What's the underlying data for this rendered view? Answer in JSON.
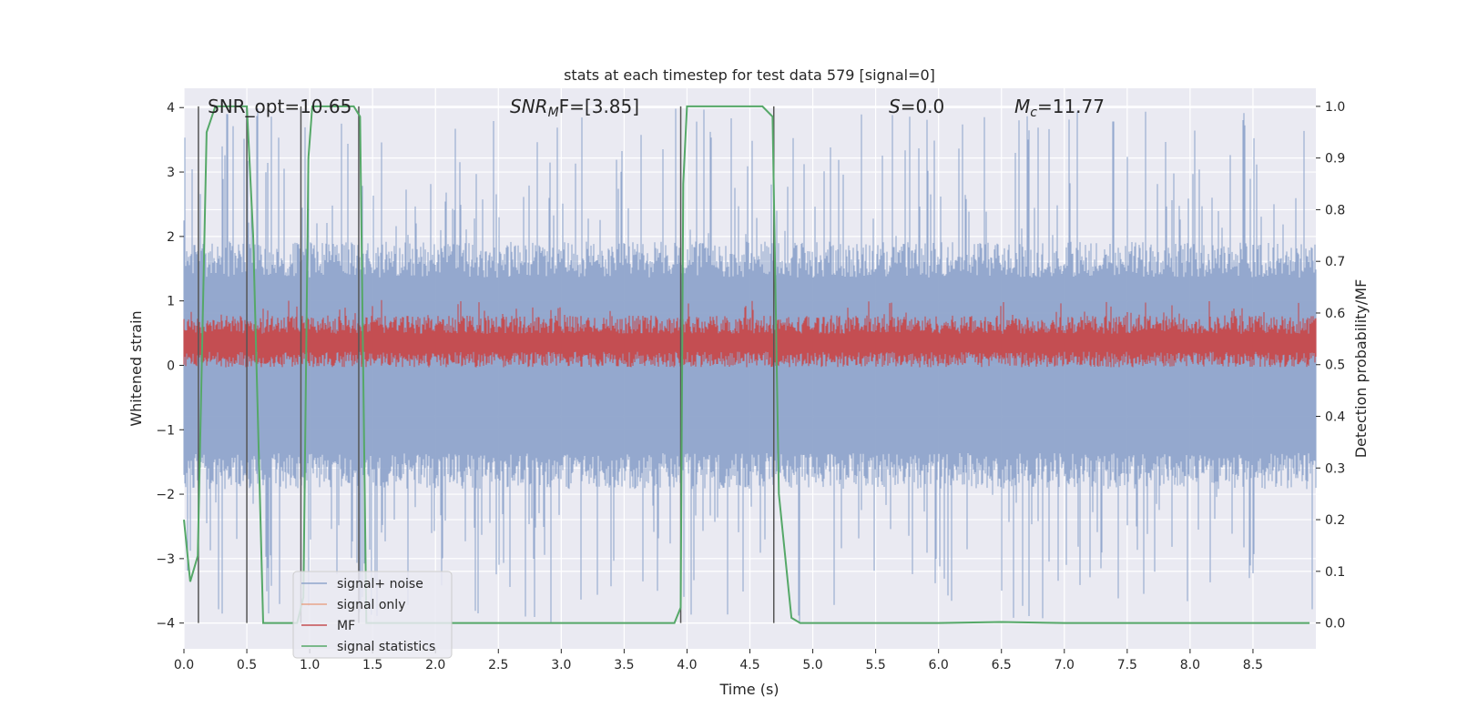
{
  "chart_data": {
    "type": "line",
    "title": "stats at each timestep for test data 579 [signal=0]",
    "xlabel": "Time (s)",
    "ylabel": "Whitened strain",
    "ylabel_right": "Detection probability/MF",
    "xlim": [
      0.0,
      9.0
    ],
    "ylim": [
      -4.4,
      4.3
    ],
    "ylim_right": [
      -0.05,
      1.035
    ],
    "xticks": [
      "0.0",
      "0.5",
      "1.0",
      "1.5",
      "2.0",
      "2.5",
      "3.0",
      "3.5",
      "4.0",
      "4.5",
      "5.0",
      "5.5",
      "6.0",
      "6.5",
      "7.0",
      "7.5",
      "8.0",
      "8.5"
    ],
    "xtick_values": [
      0.0,
      0.5,
      1.0,
      1.5,
      2.0,
      2.5,
      3.0,
      3.5,
      4.0,
      4.5,
      5.0,
      5.5,
      6.0,
      6.5,
      7.0,
      7.5,
      8.0,
      8.5
    ],
    "yticks_left": [
      "4",
      "3",
      "2",
      "1",
      "0",
      "−1",
      "−2",
      "−3",
      "−4"
    ],
    "ytick_values_left": [
      4,
      3,
      2,
      1,
      0,
      -1,
      -2,
      -3,
      -4
    ],
    "yticks_right": [
      "1.0",
      "0.9",
      "0.8",
      "0.7",
      "0.6",
      "0.5",
      "0.4",
      "0.3",
      "0.2",
      "0.1",
      "0.0"
    ],
    "ytick_values_right": [
      1.0,
      0.9,
      0.8,
      0.7,
      0.6,
      0.5,
      0.4,
      0.3,
      0.2,
      0.1,
      0.0
    ],
    "annotations": {
      "snr_opt": "SNR_opt=10.65",
      "snr_mf_main": "SNR",
      "snr_mf_sub": "M",
      "snr_mf_rest": "F=[3.85]",
      "s_main": "S",
      "s_rest": "=0.0",
      "mc_main": "M",
      "mc_sub": "c",
      "mc_rest": "=11.77"
    },
    "legend_position": "lower-left",
    "series": [
      {
        "name": "signal+ noise",
        "color": "#8fa4cb",
        "kind": "noise",
        "amplitude_typical": 1.6,
        "amplitude_max": 4.0
      },
      {
        "name": "signal only",
        "color": "#e8a48a",
        "kind": "flat",
        "values": [
          0,
          0
        ]
      },
      {
        "name": "MF",
        "color": "#c44e52",
        "kind": "noise_band",
        "axis": "right",
        "center": 0.545,
        "spread": 0.05
      },
      {
        "name": "signal statistics",
        "color": "#55a868",
        "axis": "right",
        "x": [
          0.0,
          0.05,
          0.11,
          0.18,
          0.25,
          0.3,
          0.5,
          0.55,
          0.63,
          0.9,
          0.95,
          0.99,
          1.02,
          1.35,
          1.4,
          1.45,
          2.0,
          3.0,
          3.9,
          3.95,
          3.97,
          4.0,
          4.02,
          4.3,
          4.6,
          4.68,
          4.73,
          4.83,
          4.9,
          6.0,
          6.5,
          7.0,
          8.0,
          8.95
        ],
        "y": [
          0.2,
          0.08,
          0.13,
          0.95,
          1.0,
          1.0,
          1.0,
          0.75,
          0.0,
          0.0,
          0.05,
          0.9,
          1.0,
          1.0,
          0.98,
          0.0,
          0.0,
          0.0,
          0.0,
          0.03,
          0.85,
          1.0,
          1.0,
          1.0,
          1.0,
          0.98,
          0.25,
          0.01,
          0.0,
          0.0,
          0.002,
          0.0,
          0.0,
          0.0
        ]
      }
    ],
    "vertical_lines_x": [
      0.115,
      0.5,
      0.93,
      1.39,
      3.95,
      4.69
    ],
    "vertical_lines_color": "#555555"
  }
}
